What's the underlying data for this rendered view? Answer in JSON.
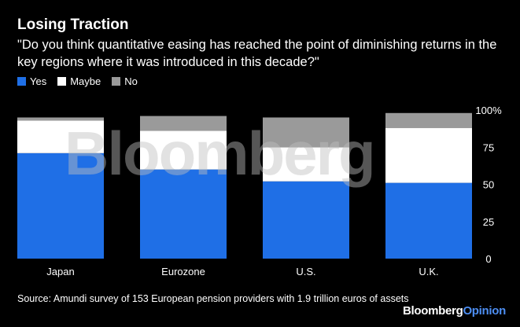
{
  "header": {
    "title": "Losing Traction",
    "subtitle": "\"Do you think quantitative easing has reached the point of diminishing returns in the key regions where it was introduced in this decade?\""
  },
  "footer": {
    "source": "Source: Amundi survey of 153 European pension providers with 1.9 trillion euros of assets",
    "brand_part1": "Bloomberg",
    "brand_part2": "Opinion"
  },
  "watermark": "Bloomberg",
  "colors": {
    "yes": "#1f6fe6",
    "maybe": "#ffffff",
    "no": "#9a9a9a",
    "background": "#000000",
    "brand_accent": "#4d8ef2"
  },
  "chart_data": {
    "type": "bar",
    "stacked": true,
    "categories": [
      "Japan",
      "Eurozone",
      "U.S.",
      "U.K."
    ],
    "series": [
      {
        "name": "Yes",
        "values": [
          71,
          60,
          52,
          51
        ]
      },
      {
        "name": "Maybe",
        "values": [
          22,
          26,
          23,
          37
        ]
      },
      {
        "name": "No",
        "values": [
          2,
          10,
          20,
          10
        ]
      }
    ],
    "yticks": [
      "0",
      "25",
      "50",
      "75",
      "100%"
    ],
    "ylim": [
      0,
      100
    ],
    "legend_position": "top-left",
    "grid": false
  }
}
